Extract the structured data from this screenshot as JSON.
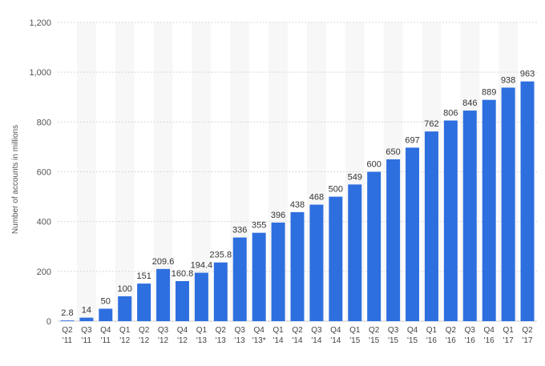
{
  "chart_data": {
    "type": "bar",
    "ylabel": "Number of accounts in millions",
    "xlabel": "",
    "ylim": [
      0,
      1200
    ],
    "yticks": [
      0,
      200,
      400,
      600,
      800,
      1000,
      1200
    ],
    "ytick_labels": [
      "0",
      "200",
      "400",
      "600",
      "800",
      "1,000",
      "1,200"
    ],
    "grid": true,
    "bar_color": "#2e6fdf",
    "categories": [
      [
        "Q2",
        "'11"
      ],
      [
        "Q3",
        "'11"
      ],
      [
        "Q4",
        "'11"
      ],
      [
        "Q1",
        "'12"
      ],
      [
        "Q2",
        "'12"
      ],
      [
        "Q3",
        "'12"
      ],
      [
        "Q4",
        "'12"
      ],
      [
        "Q1",
        "'13"
      ],
      [
        "Q2",
        "'13"
      ],
      [
        "Q3",
        "'13"
      ],
      [
        "Q4",
        "'13*"
      ],
      [
        "Q1",
        "'14"
      ],
      [
        "Q2",
        "'14"
      ],
      [
        "Q3",
        "'14"
      ],
      [
        "Q4",
        "'14"
      ],
      [
        "Q1",
        "'15"
      ],
      [
        "Q2",
        "'15"
      ],
      [
        "Q3",
        "'15"
      ],
      [
        "Q4",
        "'15"
      ],
      [
        "Q1",
        "'16"
      ],
      [
        "Q2",
        "'16"
      ],
      [
        "Q3",
        "'16"
      ],
      [
        "Q4",
        "'16"
      ],
      [
        "Q1",
        "'17"
      ],
      [
        "Q2",
        "'17"
      ]
    ],
    "values": [
      2.8,
      14,
      50,
      100,
      151,
      209.6,
      160.8,
      194.4,
      235.8,
      336,
      355,
      396,
      438,
      468,
      500,
      549,
      600,
      650,
      697,
      762,
      806,
      846,
      889,
      938,
      963
    ],
    "value_labels": [
      "2.8",
      "14",
      "50",
      "100",
      "151",
      "209.6",
      "160.8",
      "194.4",
      "235.8",
      "336",
      "355",
      "396",
      "438",
      "468",
      "500",
      "549",
      "600",
      "650",
      "697",
      "762",
      "806",
      "846",
      "889",
      "938",
      "963"
    ]
  }
}
